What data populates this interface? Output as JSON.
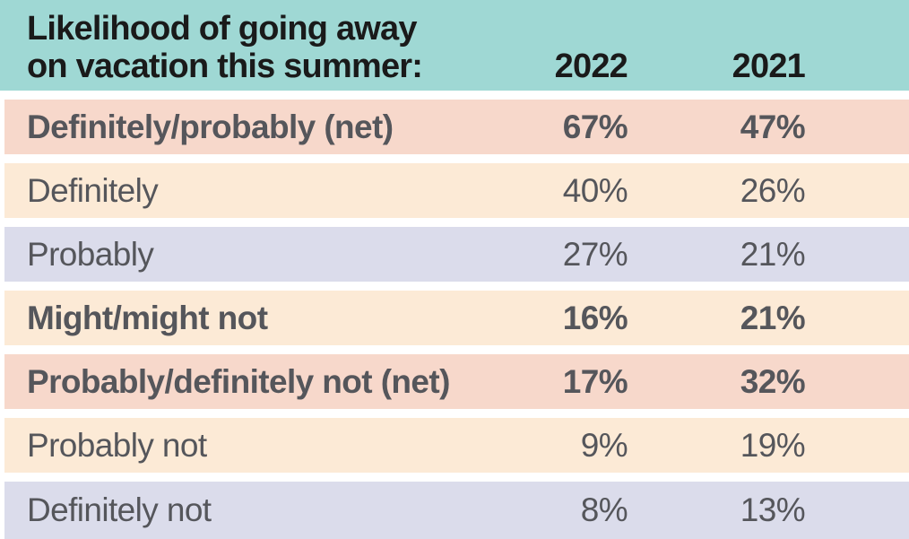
{
  "header": {
    "title_line1": "Likelihood of going away",
    "title_line2": "on vacation this summer:",
    "columns": [
      "2022",
      "2021"
    ]
  },
  "rows": [
    {
      "label": "Definitely/probably (net)",
      "values": [
        "67%",
        "47%"
      ]
    },
    {
      "label": "Definitely",
      "values": [
        "40%",
        "26%"
      ]
    },
    {
      "label": "Probably",
      "values": [
        "27%",
        "21%"
      ]
    },
    {
      "label": "Might/might not",
      "values": [
        "16%",
        "21%"
      ]
    },
    {
      "label": "Probably/definitely not (net)",
      "values": [
        "17%",
        "32%"
      ]
    },
    {
      "label": "Probably not",
      "values": [
        "9%",
        "19%"
      ]
    },
    {
      "label": "Definitely not",
      "values": [
        "8%",
        "13%"
      ]
    }
  ],
  "colors": {
    "teal": "#9FD8D4",
    "peach": "#F7D8CB",
    "cream": "#FCEAD6",
    "lavender": "#DBDCEB",
    "row_text": "#55565B",
    "header_text": "#1A1A1A",
    "gap": "#FFFFFF"
  },
  "chart_data": {
    "type": "table",
    "title": "Likelihood of going away on vacation this summer:",
    "columns": [
      "2022",
      "2021"
    ],
    "categories": [
      "Definitely/probably (net)",
      "Definitely",
      "Probably",
      "Might/might not",
      "Probably/definitely not (net)",
      "Probably not",
      "Definitely not"
    ],
    "series": [
      {
        "name": "2022",
        "values": [
          67,
          40,
          27,
          16,
          17,
          9,
          8
        ]
      },
      {
        "name": "2021",
        "values": [
          47,
          26,
          21,
          21,
          32,
          19,
          13
        ]
      }
    ],
    "unit": "%",
    "emphasized_rows": [
      "Definitely/probably (net)",
      "Might/might not",
      "Probably/definitely not (net)"
    ]
  }
}
